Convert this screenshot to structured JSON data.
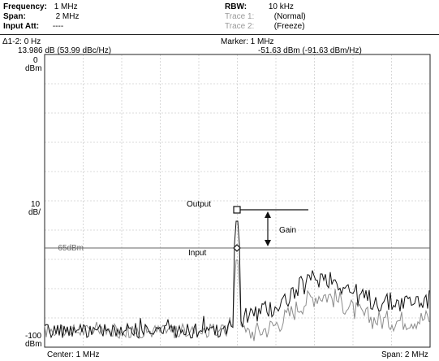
{
  "header": {
    "frequency_label": "Frequency:",
    "frequency_value": "1 MHz",
    "span_label": "Span:",
    "span_value": "2 MHz",
    "input_att_label": "Input Att:",
    "input_att_value": "----",
    "rbw_label": "RBW:",
    "rbw_value": "10 kHz",
    "trace1_label": "Trace 1:",
    "trace1_value": "(Normal)",
    "trace2_label": "Trace 2:",
    "trace2_value": "(Freeze)"
  },
  "readout": {
    "delta_line1": "Δ1-2: 0 Hz",
    "delta_line2": "13.986 dB (53.99 dBc/Hz)",
    "marker_line1": "Marker: 1 MHz",
    "marker_line2": "-51.63 dBm (-91.63 dBm/Hz)"
  },
  "axis": {
    "top_value": "0",
    "top_unit": "dBm",
    "scale_value": "10",
    "scale_unit": "dB/",
    "bottom_value": "-100",
    "bottom_unit": "dBm",
    "center": "Center: 1 MHz",
    "span": "Span: 2 MHz"
  },
  "annotations": {
    "output": "Output",
    "input": "Input",
    "gain": "Gain",
    "ref_level": "-65dBm"
  },
  "colors": {
    "trace1": "#111111",
    "trace2": "#8c8c8c",
    "grid": "#cfcfcf",
    "reference_line": "#666666"
  }
}
